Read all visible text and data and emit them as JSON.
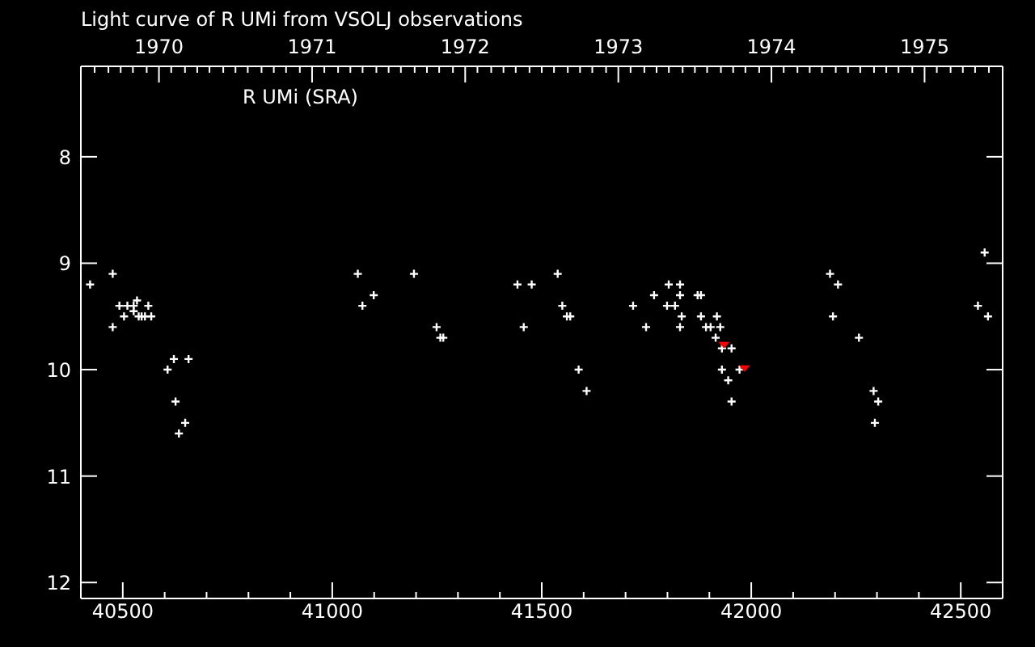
{
  "chart_data": {
    "type": "scatter",
    "title": "Light curve of R UMi from VSOLJ observations",
    "annotations": [
      "R UMi (SRA)"
    ],
    "marker": "cross",
    "xlim": [
      40400,
      42600
    ],
    "xticks": [
      40500,
      {
        "value": 40600,
        "label": null
      },
      {
        "value": 40700,
        "label": null
      },
      {
        "value": 40800,
        "label": null
      },
      {
        "value": 40900,
        "label": null
      },
      41000,
      {
        "value": 41100,
        "label": null
      },
      {
        "value": 41200,
        "label": null
      },
      {
        "value": 41300,
        "label": null
      },
      {
        "value": 41400,
        "label": null
      },
      41500,
      {
        "value": 41600,
        "label": null
      },
      {
        "value": 41700,
        "label": null
      },
      {
        "value": 41800,
        "label": null
      },
      {
        "value": 41900,
        "label": null
      },
      42000,
      {
        "value": 42100,
        "label": null
      },
      {
        "value": 42200,
        "label": null
      },
      {
        "value": 42300,
        "label": null
      },
      {
        "value": 42400,
        "label": null
      },
      42500
    ],
    "x2lim": [
      1969.49,
      1975.51
    ],
    "x2ticks": [
      {
        "value": 1969.58,
        "label": null
      },
      {
        "value": 1969.67,
        "label": null
      },
      {
        "value": 1969.75,
        "label": null
      },
      {
        "value": 1969.83,
        "label": null
      },
      {
        "value": 1969.92,
        "label": null
      },
      1970,
      {
        "value": 1970.08,
        "label": null
      },
      {
        "value": 1970.17,
        "label": null
      },
      {
        "value": 1970.25,
        "label": null
      },
      {
        "value": 1970.33,
        "label": null
      },
      {
        "value": 1970.42,
        "label": null
      },
      {
        "value": 1970.5,
        "label": null
      },
      {
        "value": 1970.58,
        "label": null
      },
      {
        "value": 1970.67,
        "label": null
      },
      {
        "value": 1970.75,
        "label": null
      },
      {
        "value": 1970.83,
        "label": null
      },
      {
        "value": 1970.92,
        "label": null
      },
      1971,
      {
        "value": 1971.08,
        "label": null
      },
      {
        "value": 1971.17,
        "label": null
      },
      {
        "value": 1971.25,
        "label": null
      },
      {
        "value": 1971.33,
        "label": null
      },
      {
        "value": 1971.42,
        "label": null
      },
      {
        "value": 1971.5,
        "label": null
      },
      {
        "value": 1971.58,
        "label": null
      },
      {
        "value": 1971.67,
        "label": null
      },
      {
        "value": 1971.75,
        "label": null
      },
      {
        "value": 1971.83,
        "label": null
      },
      {
        "value": 1971.92,
        "label": null
      },
      1972,
      {
        "value": 1972.08,
        "label": null
      },
      {
        "value": 1972.17,
        "label": null
      },
      {
        "value": 1972.25,
        "label": null
      },
      {
        "value": 1972.33,
        "label": null
      },
      {
        "value": 1972.42,
        "label": null
      },
      {
        "value": 1972.5,
        "label": null
      },
      {
        "value": 1972.58,
        "label": null
      },
      {
        "value": 1972.67,
        "label": null
      },
      {
        "value": 1972.75,
        "label": null
      },
      {
        "value": 1972.83,
        "label": null
      },
      {
        "value": 1972.92,
        "label": null
      },
      1973,
      {
        "value": 1973.08,
        "label": null
      },
      {
        "value": 1973.17,
        "label": null
      },
      {
        "value": 1973.25,
        "label": null
      },
      {
        "value": 1973.33,
        "label": null
      },
      {
        "value": 1973.42,
        "label": null
      },
      {
        "value": 1973.5,
        "label": null
      },
      {
        "value": 1973.58,
        "label": null
      },
      {
        "value": 1973.67,
        "label": null
      },
      {
        "value": 1973.75,
        "label": null
      },
      {
        "value": 1973.83,
        "label": null
      },
      {
        "value": 1973.92,
        "label": null
      },
      1974,
      {
        "value": 1974.08,
        "label": null
      },
      {
        "value": 1974.17,
        "label": null
      },
      {
        "value": 1974.25,
        "label": null
      },
      {
        "value": 1974.33,
        "label": null
      },
      {
        "value": 1974.42,
        "label": null
      },
      {
        "value": 1974.5,
        "label": null
      },
      {
        "value": 1974.58,
        "label": null
      },
      {
        "value": 1974.67,
        "label": null
      },
      {
        "value": 1974.75,
        "label": null
      },
      {
        "value": 1974.83,
        "label": null
      },
      {
        "value": 1974.92,
        "label": null
      },
      1975,
      {
        "value": 1975.08,
        "label": null
      },
      {
        "value": 1975.17,
        "label": null
      },
      {
        "value": 1975.25,
        "label": null
      },
      {
        "value": 1975.33,
        "label": null
      },
      {
        "value": 1975.42,
        "label": null
      }
    ],
    "ylim": [
      12.15,
      7.15
    ],
    "yticks": [
      8,
      9,
      10,
      11,
      12
    ],
    "series": [
      {
        "color": "#ffffff",
        "x": [
          40422,
          40476,
          40476,
          40492,
          40503,
          40511,
          40526,
          40526,
          40534,
          40538,
          40545,
          40553,
          40561,
          40568,
          40607,
          40622,
          40626,
          40634,
          40649,
          40657,
          41061,
          41072,
          41099,
          41195,
          41249,
          41258,
          41265,
          41442,
          41457,
          41476,
          41538,
          41549,
          41560,
          41568,
          41588,
          41607,
          41718,
          41749,
          41768,
          41799,
          41803,
          41818,
          41830,
          41830,
          41830,
          41834,
          41872,
          41880,
          41880,
          41892,
          41903,
          41915,
          41918,
          41926,
          41930,
          41930,
          41945,
          41953,
          41953,
          41972,
          42188,
          42195,
          42207,
          42257,
          42292,
          42295,
          42303,
          42541,
          42557,
          42565
        ],
        "values": [
          9.2,
          9.1,
          9.6,
          9.4,
          9.5,
          9.4,
          9.4,
          9.45,
          9.35,
          9.5,
          9.5,
          9.5,
          9.4,
          9.5,
          10.0,
          9.9,
          10.3,
          10.6,
          10.5,
          9.9,
          9.1,
          9.4,
          9.3,
          9.1,
          9.6,
          9.7,
          9.7,
          9.2,
          9.6,
          9.2,
          9.1,
          9.4,
          9.5,
          9.5,
          10.0,
          10.2,
          9.4,
          9.6,
          9.3,
          9.4,
          9.2,
          9.4,
          9.2,
          9.3,
          9.6,
          9.5,
          9.3,
          9.3,
          9.5,
          9.6,
          9.6,
          9.7,
          9.5,
          9.6,
          9.8,
          10.0,
          10.1,
          9.8,
          10.3,
          10.0,
          9.1,
          9.5,
          9.2,
          9.7,
          10.2,
          10.5,
          10.3,
          9.4,
          8.9,
          9.5
        ]
      },
      {
        "color": "#ff0000",
        "marker": "triangle",
        "x": [
          41935,
          41984
        ],
        "values": [
          9.77,
          9.99
        ]
      }
    ]
  }
}
